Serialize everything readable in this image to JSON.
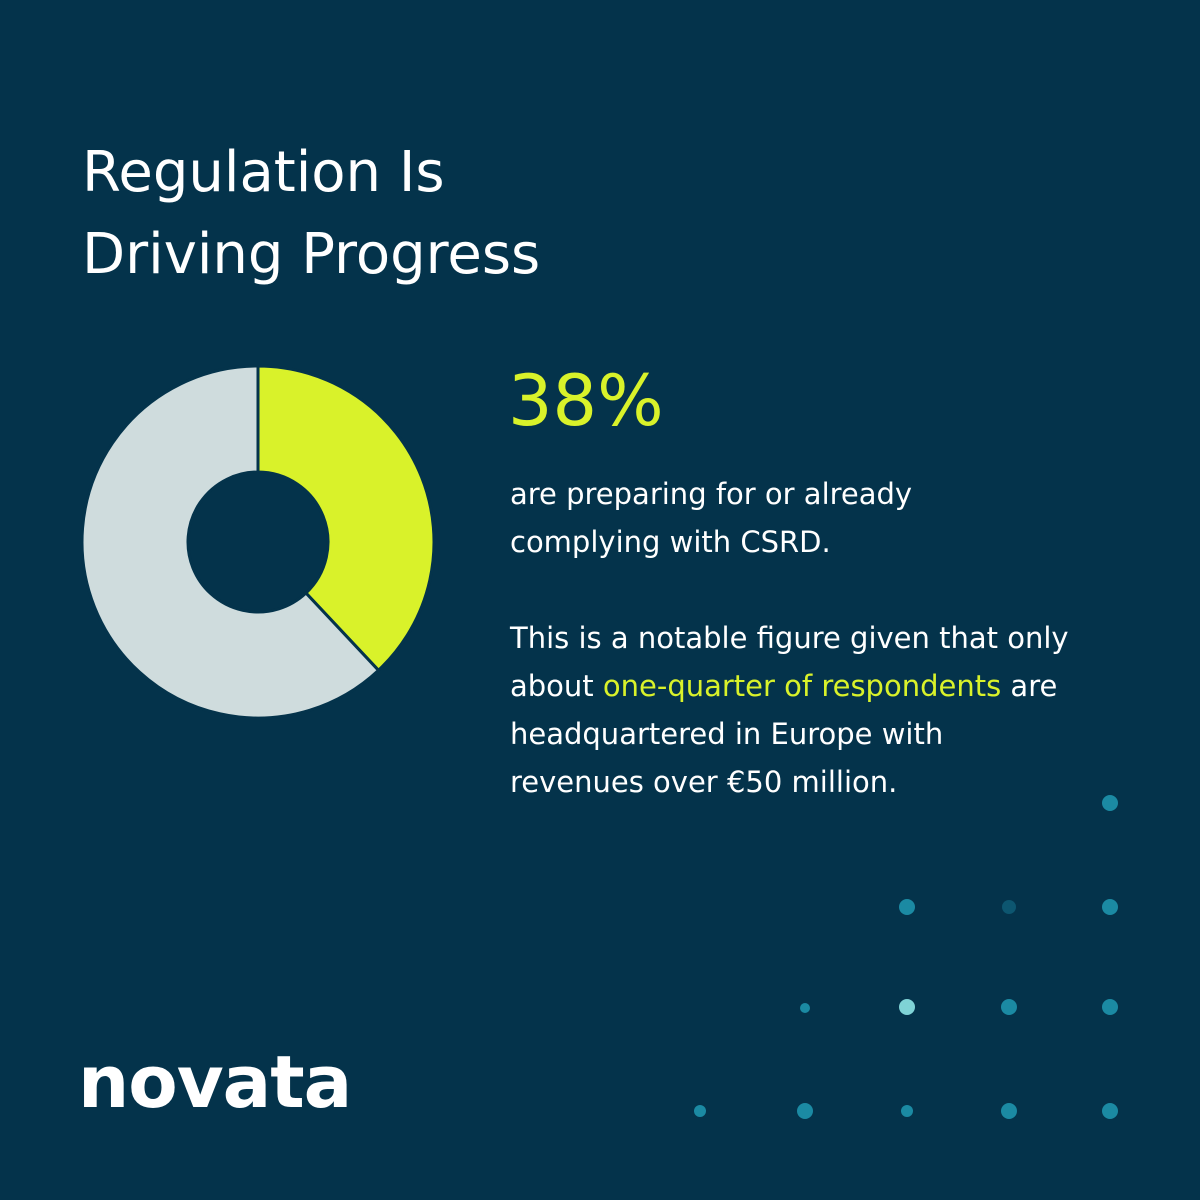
{
  "chart_data": {
    "type": "pie",
    "title": "Regulation Is Driving Progress",
    "categories": [
      null,
      null
    ],
    "values": [
      38,
      62
    ],
    "value_labels": [
      "38%",
      null
    ],
    "colors": [
      "#d9f22a",
      "#cfdcdd"
    ],
    "hole": true,
    "annotation": "are preparing for or already complying with CSRD.",
    "note": [
      "This is a notable figure given that only about ",
      "one-quarter of respondents",
      " are headquartered in Europe with revenues over €50 million."
    ]
  },
  "logo": "novata"
}
